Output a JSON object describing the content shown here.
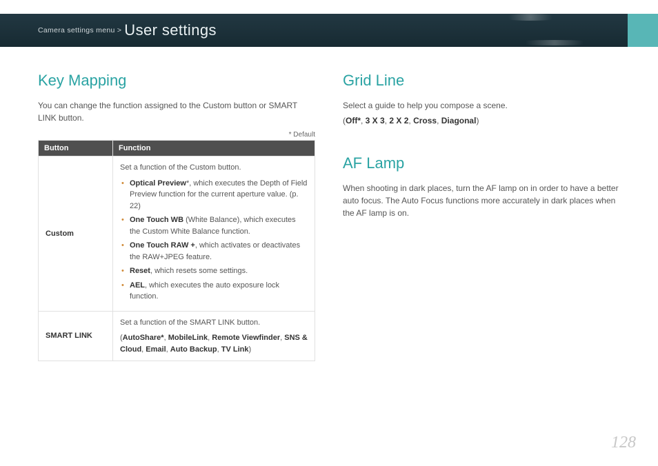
{
  "header": {
    "breadcrumb_small": "Camera settings menu >",
    "breadcrumb_large": "User settings",
    "band_bg_top": "#223842",
    "band_bg_bottom": "#172a32",
    "accent_color": "#58b6b6"
  },
  "page_number": "128",
  "left": {
    "title": "Key Mapping",
    "intro": "You can change the function assigned to the Custom button or SMART LINK button.",
    "default_note": "* Default",
    "table": {
      "headers": [
        "Button",
        "Function"
      ],
      "header_bg": "#4f4f4f",
      "rows": [
        {
          "button": "Custom",
          "intro": "Set a function of the Custom button.",
          "items": [
            {
              "bold": "Optical Preview",
              "suffix": "*, which executes the Depth of Field Preview function for the current aperture value. (p. 22)"
            },
            {
              "bold": "One Touch WB",
              "suffix": " (White Balance), which executes the Custom White Balance function."
            },
            {
              "bold": "One Touch RAW +",
              "suffix": ", which activates or deactivates the RAW+JPEG feature."
            },
            {
              "bold": "Reset",
              "suffix": ", which resets some settings."
            },
            {
              "bold": "AEL",
              "suffix": ", which executes the auto exposure lock function."
            }
          ]
        },
        {
          "button": "SMART LINK",
          "intro": "Set a function of the SMART LINK button.",
          "options_line": [
            "AutoShare*",
            "MobileLink",
            "Remote Viewfinder",
            "SNS & Cloud",
            "Email",
            "Auto Backup",
            "TV Link"
          ]
        }
      ]
    }
  },
  "right": {
    "sec1": {
      "title": "Grid Line",
      "intro": "Select a guide to help you compose a scene.",
      "options": [
        "Off*",
        "3 X 3",
        "2 X 2",
        "Cross",
        "Diagonal"
      ]
    },
    "sec2": {
      "title": "AF Lamp",
      "body": "When shooting in dark places, turn the AF lamp on in order to have a better auto focus. The Auto Focus functions more accurately in dark places when the AF lamp is on."
    }
  },
  "colors": {
    "heading": "#2aa3a3",
    "bullet": "#d08a38",
    "body_text": "#555555",
    "bold_text": "#333333",
    "border": "#e0e0e0",
    "page_num": "#c7c7c7"
  },
  "typography": {
    "heading_fontsize_pt": 16,
    "body_fontsize_pt": 9,
    "table_fontsize_pt": 8,
    "pagenum_fontsize_pt": 18
  }
}
